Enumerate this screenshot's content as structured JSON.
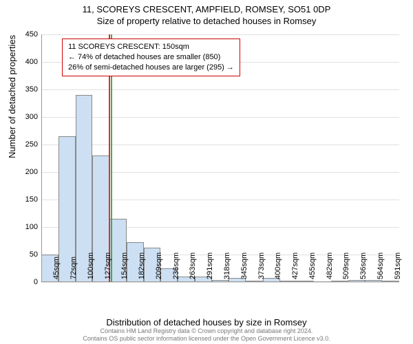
{
  "title_main": "11, SCOREYS CRESCENT, AMPFIELD, ROMSEY, SO51 0DP",
  "title_sub": "Size of property relative to detached houses in Romsey",
  "y_axis_title": "Number of detached properties",
  "x_axis_title": "Distribution of detached houses by size in Romsey",
  "footer_line1": "Contains HM Land Registry data © Crown copyright and database right 2024.",
  "footer_line2": "Contains OS public sector information licensed under the Open Government Licence v3.0.",
  "legend": {
    "line1": "11 SCOREYS CRESCENT: 150sqm",
    "line2": "← 74% of detached houses are smaller (850)",
    "line3": "26% of semi-detached houses are larger (295) →"
  },
  "chart": {
    "type": "histogram",
    "ylim": [
      0,
      450
    ],
    "ytick_step": 50,
    "xticks": [
      "45sqm",
      "72sqm",
      "100sqm",
      "127sqm",
      "154sqm",
      "182sqm",
      "209sqm",
      "236sqm",
      "263sqm",
      "291sqm",
      "318sqm",
      "345sqm",
      "373sqm",
      "400sqm",
      "427sqm",
      "455sqm",
      "482sqm",
      "509sqm",
      "536sqm",
      "564sqm",
      "591sqm"
    ],
    "values": [
      50,
      265,
      340,
      230,
      115,
      72,
      62,
      25,
      10,
      10,
      4,
      8,
      2,
      8,
      2,
      2,
      0,
      3,
      4,
      4,
      1
    ],
    "bar_fill": "#cddff2",
    "bar_border": "#888888",
    "grid_color": "#e0e0e0",
    "background_color": "#ffffff",
    "marker_line_color": "#d93030",
    "marker_line2_color": "#3cb043",
    "marker_position_index": 4,
    "legend_border": "#cc0000",
    "label_fontsize": 11,
    "title_fontsize": 13
  }
}
